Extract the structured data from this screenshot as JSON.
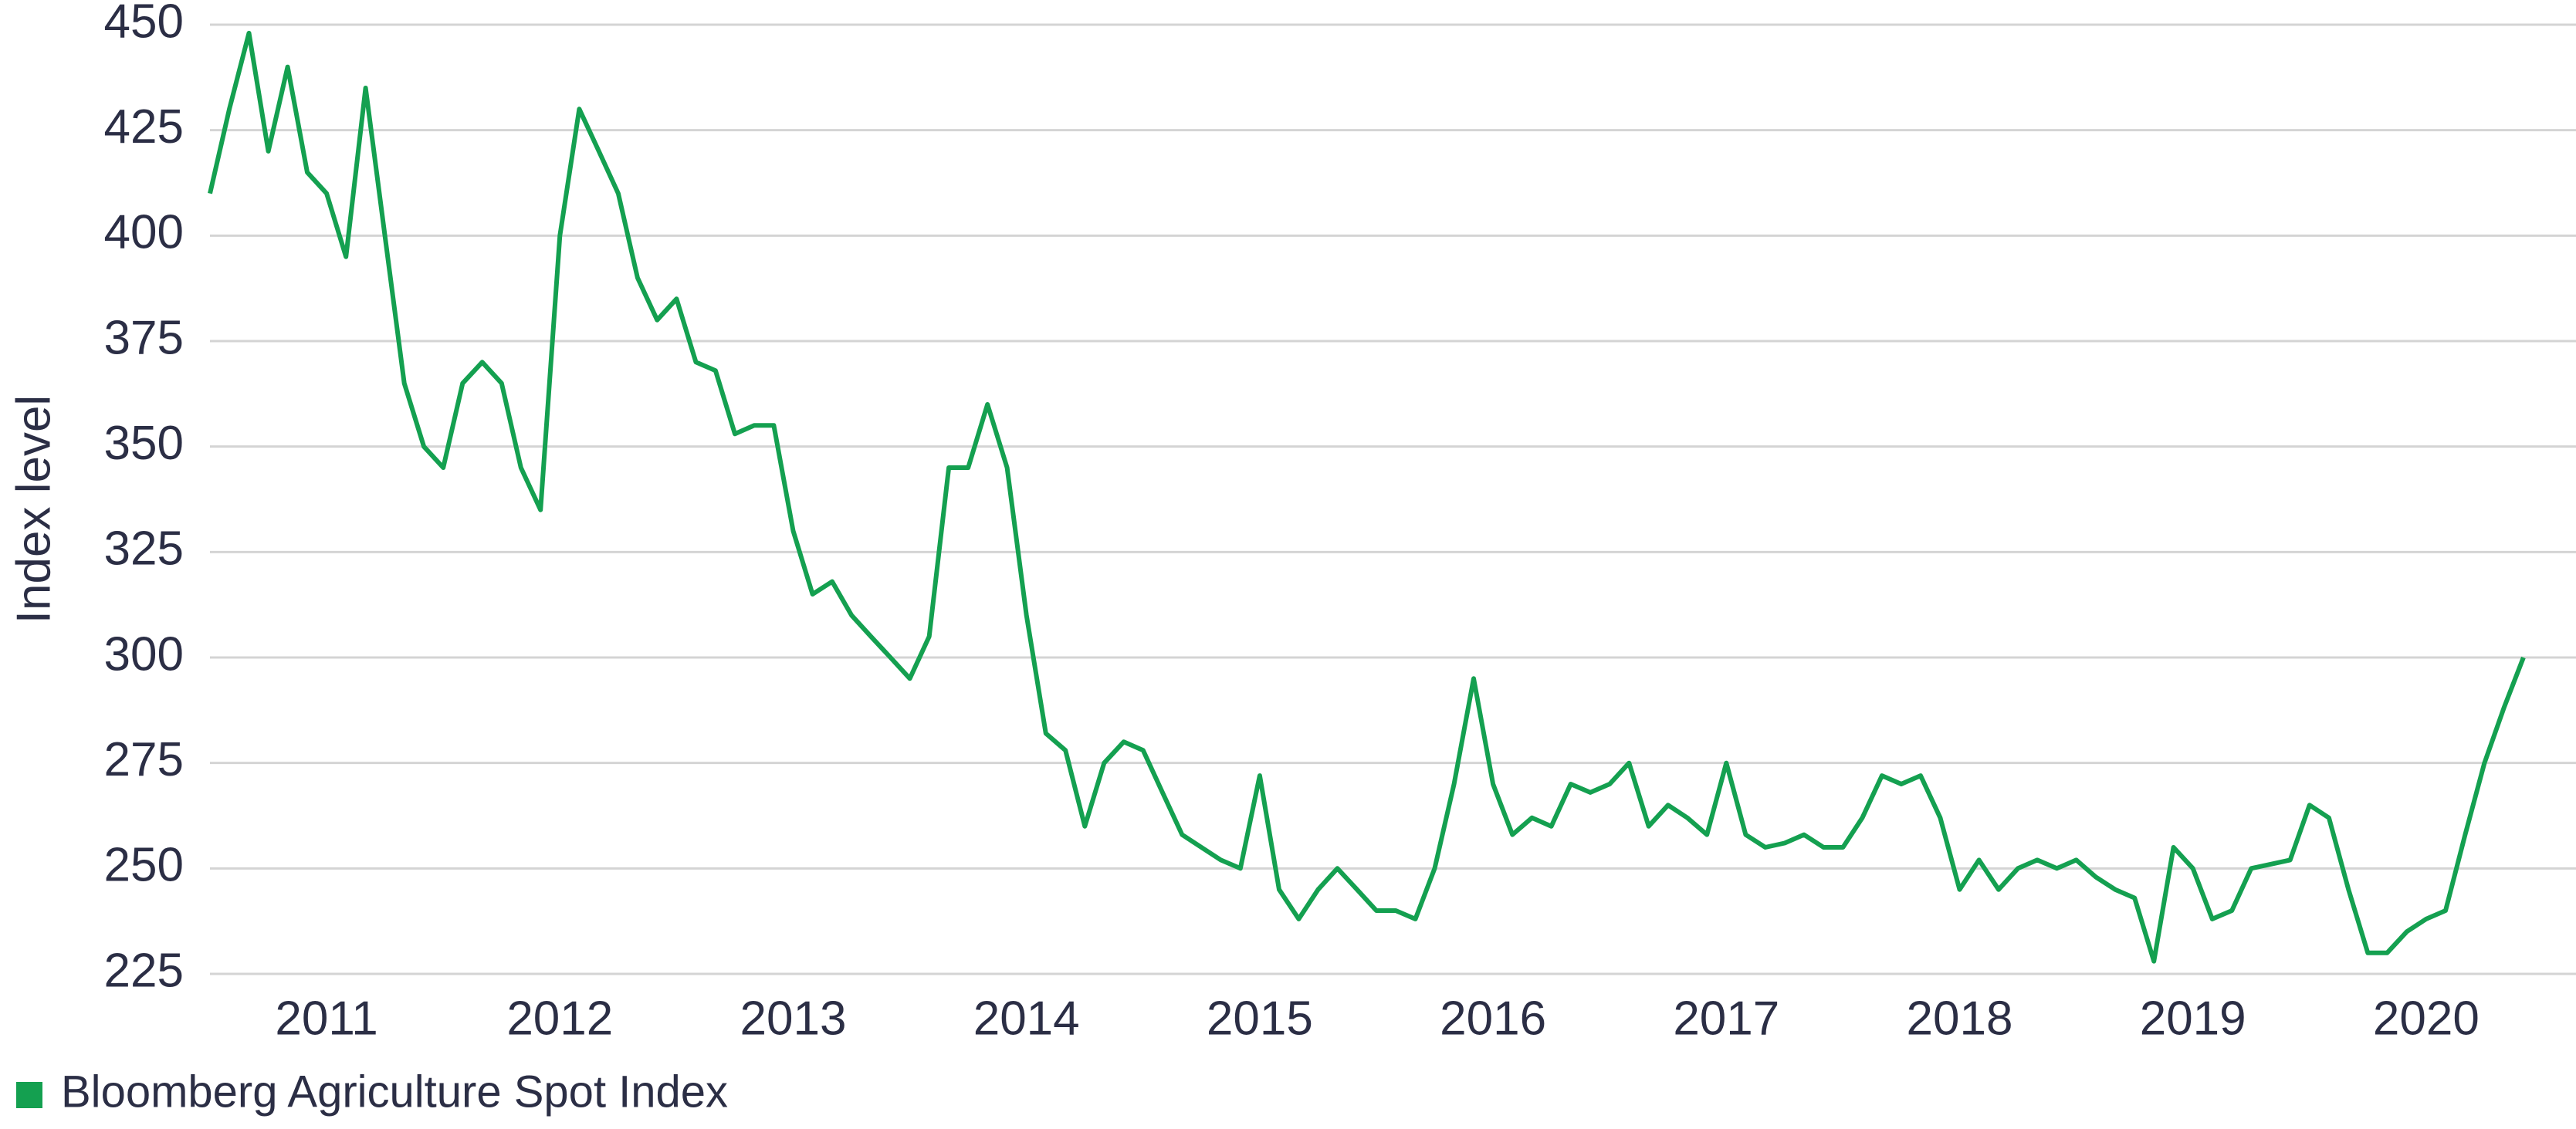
{
  "chart_data": {
    "type": "line",
    "y_label": "Index level",
    "x": [
      2011.0,
      2011.083,
      2011.167,
      2011.25,
      2011.333,
      2011.417,
      2011.5,
      2011.583,
      2011.667,
      2011.75,
      2011.833,
      2011.917,
      2012.0,
      2012.083,
      2012.167,
      2012.25,
      2012.333,
      2012.417,
      2012.5,
      2012.583,
      2012.667,
      2012.75,
      2012.833,
      2012.917,
      2013.0,
      2013.083,
      2013.167,
      2013.25,
      2013.333,
      2013.417,
      2013.5,
      2013.583,
      2013.667,
      2013.75,
      2013.833,
      2013.917,
      2014.0,
      2014.083,
      2014.167,
      2014.25,
      2014.333,
      2014.417,
      2014.5,
      2014.583,
      2014.667,
      2014.75,
      2014.833,
      2014.917,
      2015.0,
      2015.083,
      2015.167,
      2015.25,
      2015.333,
      2015.417,
      2015.5,
      2015.583,
      2015.667,
      2015.75,
      2015.833,
      2015.917,
      2016.0,
      2016.083,
      2016.167,
      2016.25,
      2016.333,
      2016.417,
      2016.5,
      2016.583,
      2016.667,
      2016.75,
      2016.833,
      2016.917,
      2017.0,
      2017.083,
      2017.167,
      2017.25,
      2017.333,
      2017.417,
      2017.5,
      2017.583,
      2017.667,
      2017.75,
      2017.833,
      2017.917,
      2018.0,
      2018.083,
      2018.167,
      2018.25,
      2018.333,
      2018.417,
      2018.5,
      2018.583,
      2018.667,
      2018.75,
      2018.833,
      2018.917,
      2019.0,
      2019.083,
      2019.167,
      2019.25,
      2019.333,
      2019.417,
      2019.5,
      2019.583,
      2019.667,
      2019.75,
      2019.833,
      2019.917,
      2020.0,
      2020.083,
      2020.167,
      2020.25,
      2020.333,
      2020.417,
      2020.5,
      2020.583,
      2020.667,
      2020.75,
      2020.833,
      2020.917
    ],
    "series": [
      {
        "name": "Bloomberg Agriculture Spot Index",
        "color": "#14a050",
        "values": [
          410,
          430,
          448,
          420,
          440,
          415,
          410,
          395,
          435,
          400,
          365,
          350,
          345,
          365,
          370,
          365,
          345,
          335,
          400,
          430,
          420,
          410,
          390,
          380,
          385,
          370,
          368,
          353,
          355,
          355,
          330,
          315,
          318,
          310,
          305,
          300,
          295,
          305,
          345,
          345,
          360,
          345,
          310,
          282,
          278,
          260,
          275,
          280,
          278,
          268,
          258,
          255,
          252,
          250,
          272,
          245,
          238,
          245,
          250,
          245,
          240,
          240,
          238,
          250,
          270,
          295,
          270,
          258,
          262,
          260,
          270,
          268,
          270,
          275,
          260,
          265,
          262,
          258,
          275,
          258,
          255,
          256,
          258,
          255,
          255,
          262,
          272,
          270,
          272,
          262,
          245,
          252,
          245,
          250,
          252,
          250,
          252,
          248,
          245,
          243,
          228,
          255,
          250,
          238,
          240,
          250,
          251,
          252,
          265,
          262,
          245,
          230,
          230,
          235,
          238,
          240,
          258,
          275,
          288,
          300
        ]
      }
    ],
    "xlim": [
      2011,
      2021
    ],
    "xticks": [
      {
        "value": 2011.5,
        "label": "2011"
      },
      {
        "value": 2012.5,
        "label": "2012"
      },
      {
        "value": 2013.5,
        "label": "2013"
      },
      {
        "value": 2014.5,
        "label": "2014"
      },
      {
        "value": 2015.5,
        "label": "2015"
      },
      {
        "value": 2016.5,
        "label": "2016"
      },
      {
        "value": 2017.5,
        "label": "2017"
      },
      {
        "value": 2018.5,
        "label": "2018"
      },
      {
        "value": 2019.5,
        "label": "2019"
      },
      {
        "value": 2020.5,
        "label": "2020"
      }
    ],
    "ylim": [
      225,
      450
    ],
    "yticks": [
      225,
      250,
      275,
      300,
      325,
      350,
      375,
      400,
      425,
      450
    ],
    "grid": true,
    "legend": "bottom-left"
  }
}
